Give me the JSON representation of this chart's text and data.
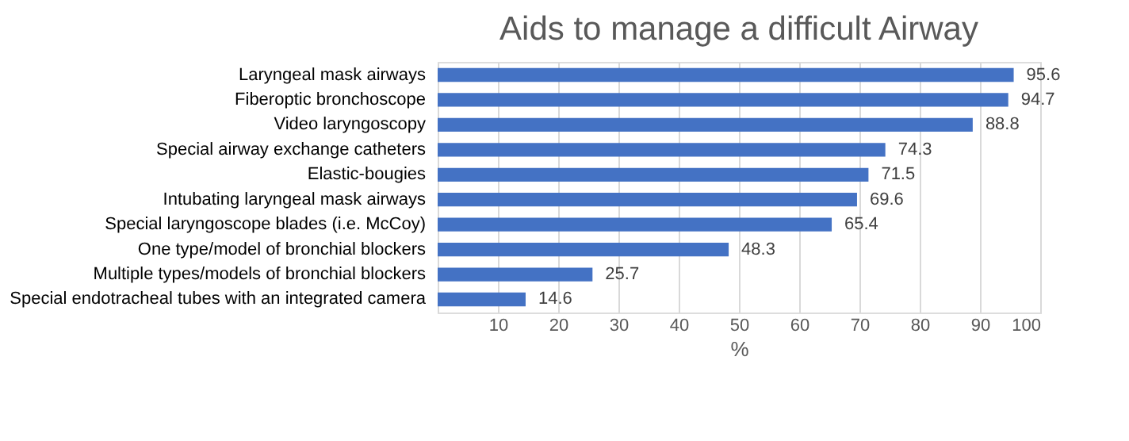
{
  "chart_data": {
    "type": "bar",
    "orientation": "horizontal",
    "title": "Aids to manage a difficult Airway",
    "xlabel": "%",
    "categories": [
      "Laryngeal mask airways",
      "Fiberoptic bronchoscope",
      "Video laryngoscopy",
      "Special airway exchange catheters",
      "Elastic-bougies",
      "Intubating laryngeal mask airways",
      "Special laryngoscope blades (i.e. McCoy)",
      "One type/model of bronchial blockers",
      "Multiple types/models of bronchial blockers",
      "Special endotracheal tubes with an integrated camera"
    ],
    "values": [
      95.6,
      94.7,
      88.8,
      74.3,
      71.5,
      69.6,
      65.4,
      48.3,
      25.7,
      14.6
    ],
    "color": "#4472c4",
    "data_labels": true,
    "xlim": [
      0,
      100
    ],
    "xticks": [
      {
        "value": 0,
        "label": null
      },
      10,
      20,
      30,
      40,
      50,
      60,
      70,
      80,
      90,
      100
    ],
    "grid": "x"
  }
}
